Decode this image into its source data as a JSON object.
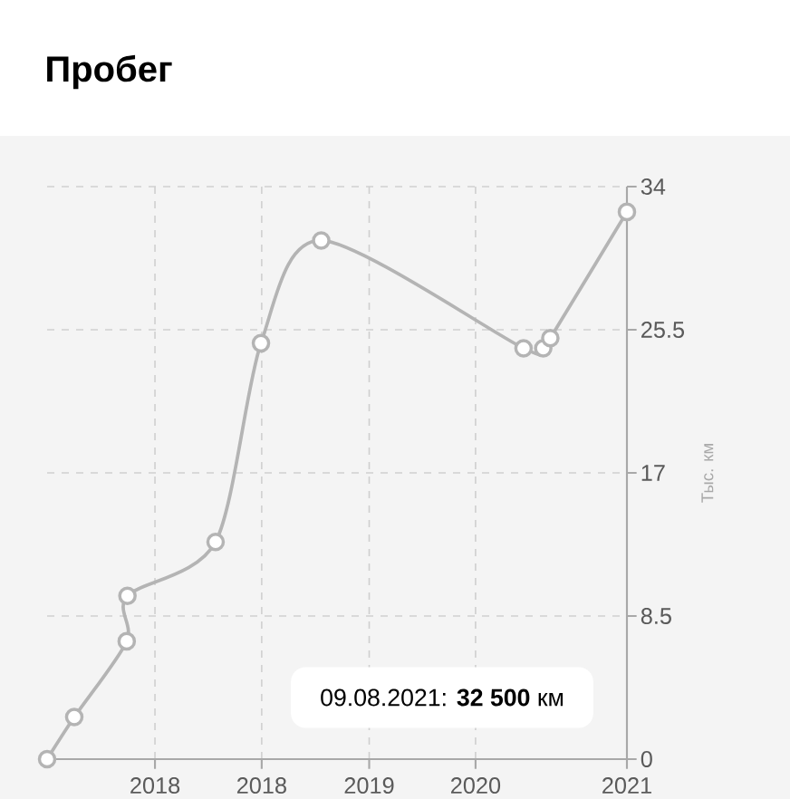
{
  "chart_data": {
    "type": "line",
    "title": "Пробег",
    "ylabel": "Тыс. км",
    "x": [
      "2017-05-03",
      "2017-07-15",
      "2017-12-03",
      "2017-12-05",
      "2018-07-30",
      "2018-11-29",
      "2019-05-10",
      "2020-11-04",
      "2020-12-27",
      "2021-01-15",
      "2021-08-09"
    ],
    "series": [
      {
        "color": "#b4b4b4",
        "values": [
          0,
          2.5,
          7.0,
          9.7,
          12.9,
          24.7,
          30.8,
          24.4,
          24.4,
          25.0,
          32.5
        ]
      }
    ],
    "xlim": [
      "2017-05-03",
      "2021-08-09"
    ],
    "ylim": [
      0,
      34
    ],
    "xticks": [
      {
        "value": "2018-02-17",
        "label": "2018"
      },
      {
        "value": "2018-12-01",
        "label": "2018"
      },
      {
        "value": "2019-09-16",
        "label": "2019"
      },
      {
        "value": "2020-06-28",
        "label": "2020"
      },
      {
        "value": "2021-08-09",
        "label": "2021"
      }
    ],
    "yticks": [
      0,
      8.5,
      17,
      25.5,
      34
    ],
    "grid": true,
    "marker": "circle",
    "line_style": "solid",
    "annotations": [
      "09.08.2021: **32 500** км"
    ]
  }
}
